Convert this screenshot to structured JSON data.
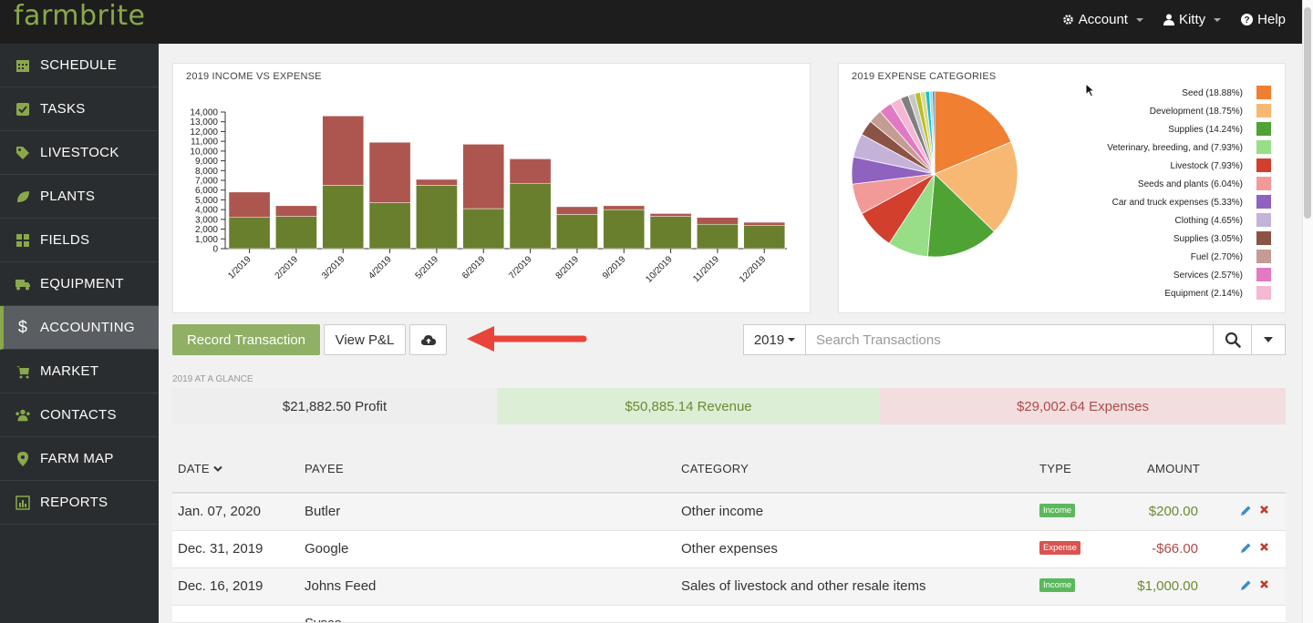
{
  "app": {
    "logo": "farmbrite"
  },
  "topnav": {
    "account": "Account",
    "user": "Kitty",
    "help": "Help"
  },
  "sidebar": {
    "items": [
      {
        "label": "SCHEDULE",
        "icon": "calendar-icon"
      },
      {
        "label": "TASKS",
        "icon": "check-square-icon"
      },
      {
        "label": "LIVESTOCK",
        "icon": "tag-icon"
      },
      {
        "label": "PLANTS",
        "icon": "leaf-icon"
      },
      {
        "label": "FIELDS",
        "icon": "grid-icon"
      },
      {
        "label": "EQUIPMENT",
        "icon": "truck-icon"
      },
      {
        "label": "ACCOUNTING",
        "icon": "dollar-icon"
      },
      {
        "label": "MARKET",
        "icon": "cart-icon"
      },
      {
        "label": "CONTACTS",
        "icon": "users-icon"
      },
      {
        "label": "FARM MAP",
        "icon": "map-marker-icon"
      },
      {
        "label": "REPORTS",
        "icon": "bar-chart-icon"
      }
    ]
  },
  "colors": {
    "income": "#6a7f2e",
    "expense": "#ad5650",
    "accent": "#8fb065"
  },
  "chart_data": [
    {
      "type": "bar",
      "title": "2019 INCOME VS EXPENSE",
      "categories": [
        "1/2019",
        "2/2019",
        "3/2019",
        "4/2019",
        "5/2019",
        "6/2019",
        "7/2019",
        "8/2019",
        "9/2019",
        "10/2019",
        "11/2019",
        "12/2019"
      ],
      "stacked": true,
      "series": [
        {
          "values": [
            3200,
            3300,
            6500,
            4700,
            6500,
            4100,
            6700,
            3500,
            4000,
            3300,
            2500,
            2400
          ]
        },
        {
          "values": [
            2600,
            1100,
            7100,
            6200,
            600,
            6600,
            2500,
            800,
            400,
            300,
            700,
            300
          ]
        }
      ],
      "ylim": [
        0,
        14000
      ],
      "yticks": [
        "0",
        "1,000",
        "2,000",
        "3,000",
        "4,000",
        "5,000",
        "6,000",
        "7,000",
        "8,000",
        "9,000",
        "10,000",
        "11,000",
        "12,000",
        "13,000",
        "14,000"
      ],
      "xlabel": "",
      "ylabel": ""
    },
    {
      "type": "pie",
      "title": "2019 EXPENSE CATEGORIES",
      "slices": [
        {
          "label": "Seed (18.88%)",
          "value": 18.88,
          "color": "#f07f32"
        },
        {
          "label": "Development (18.75%)",
          "value": 18.75,
          "color": "#f7b874"
        },
        {
          "label": "Supplies (14.24%)",
          "value": 14.24,
          "color": "#4ea334"
        },
        {
          "label": "Veterinary, breeding, and (7.93%)",
          "value": 7.93,
          "color": "#97de86"
        },
        {
          "label": "Livestock (7.93%)",
          "value": 7.93,
          "color": "#d23f2d"
        },
        {
          "label": "Seeds and plants (6.04%)",
          "value": 6.04,
          "color": "#f29a98"
        },
        {
          "label": "Car and truck expenses (5.33%)",
          "value": 5.33,
          "color": "#8f62bf"
        },
        {
          "label": "Clothing (4.65%)",
          "value": 4.65,
          "color": "#c5b2d9"
        },
        {
          "label": "Supplies (3.05%)",
          "value": 3.05,
          "color": "#8b5346"
        },
        {
          "label": "Fuel (2.70%)",
          "value": 2.7,
          "color": "#c49c93"
        },
        {
          "label": "Services (2.57%)",
          "value": 2.57,
          "color": "#e27ac3"
        },
        {
          "label": "Equipment (2.14%)",
          "value": 2.14,
          "color": "#f4b8d4"
        },
        {
          "value": 1.6,
          "color": "#7f7f7f"
        },
        {
          "value": 1.3,
          "color": "#c7c7c7"
        },
        {
          "value": 1.1,
          "color": "#bcbd22"
        },
        {
          "value": 1.0,
          "color": "#dbdb8d"
        },
        {
          "value": 0.8,
          "color": "#17becf"
        },
        {
          "value": 0.6,
          "color": "#9edae5"
        },
        {
          "value": 0.4,
          "color": "#1f77b4"
        }
      ]
    }
  ],
  "actions": {
    "record": "Record Transaction",
    "view_pl": "View P&L",
    "upload_icon": "cloud-upload-icon"
  },
  "filter": {
    "year": "2019",
    "search_placeholder": "Search Transactions",
    "search_value": ""
  },
  "glance": {
    "label": "2019 AT A GLANCE",
    "profit": "$21,882.50 Profit",
    "revenue": "$50,885.14 Revenue",
    "expenses": "$29,002.64 Expenses"
  },
  "table": {
    "headers": {
      "date": "DATE",
      "payee": "PAYEE",
      "category": "CATEGORY",
      "type": "TYPE",
      "amount": "AMOUNT"
    },
    "rows": [
      {
        "date": "Jan. 07, 2020",
        "payee": "Butler",
        "category": "Other income",
        "type": "Income",
        "amount": "$200.00"
      },
      {
        "date": "Dec. 31, 2019",
        "payee": "Google",
        "category": "Other expenses",
        "type": "Expense",
        "amount": "-$66.00"
      },
      {
        "date": "Dec. 16, 2019",
        "payee": "Johns Feed",
        "category": "Sales of livestock and other resale items",
        "type": "Income",
        "amount": "$1,000.00"
      },
      {
        "date": "",
        "payee": "Sysco",
        "category": "",
        "type": "",
        "amount": ""
      }
    ]
  }
}
